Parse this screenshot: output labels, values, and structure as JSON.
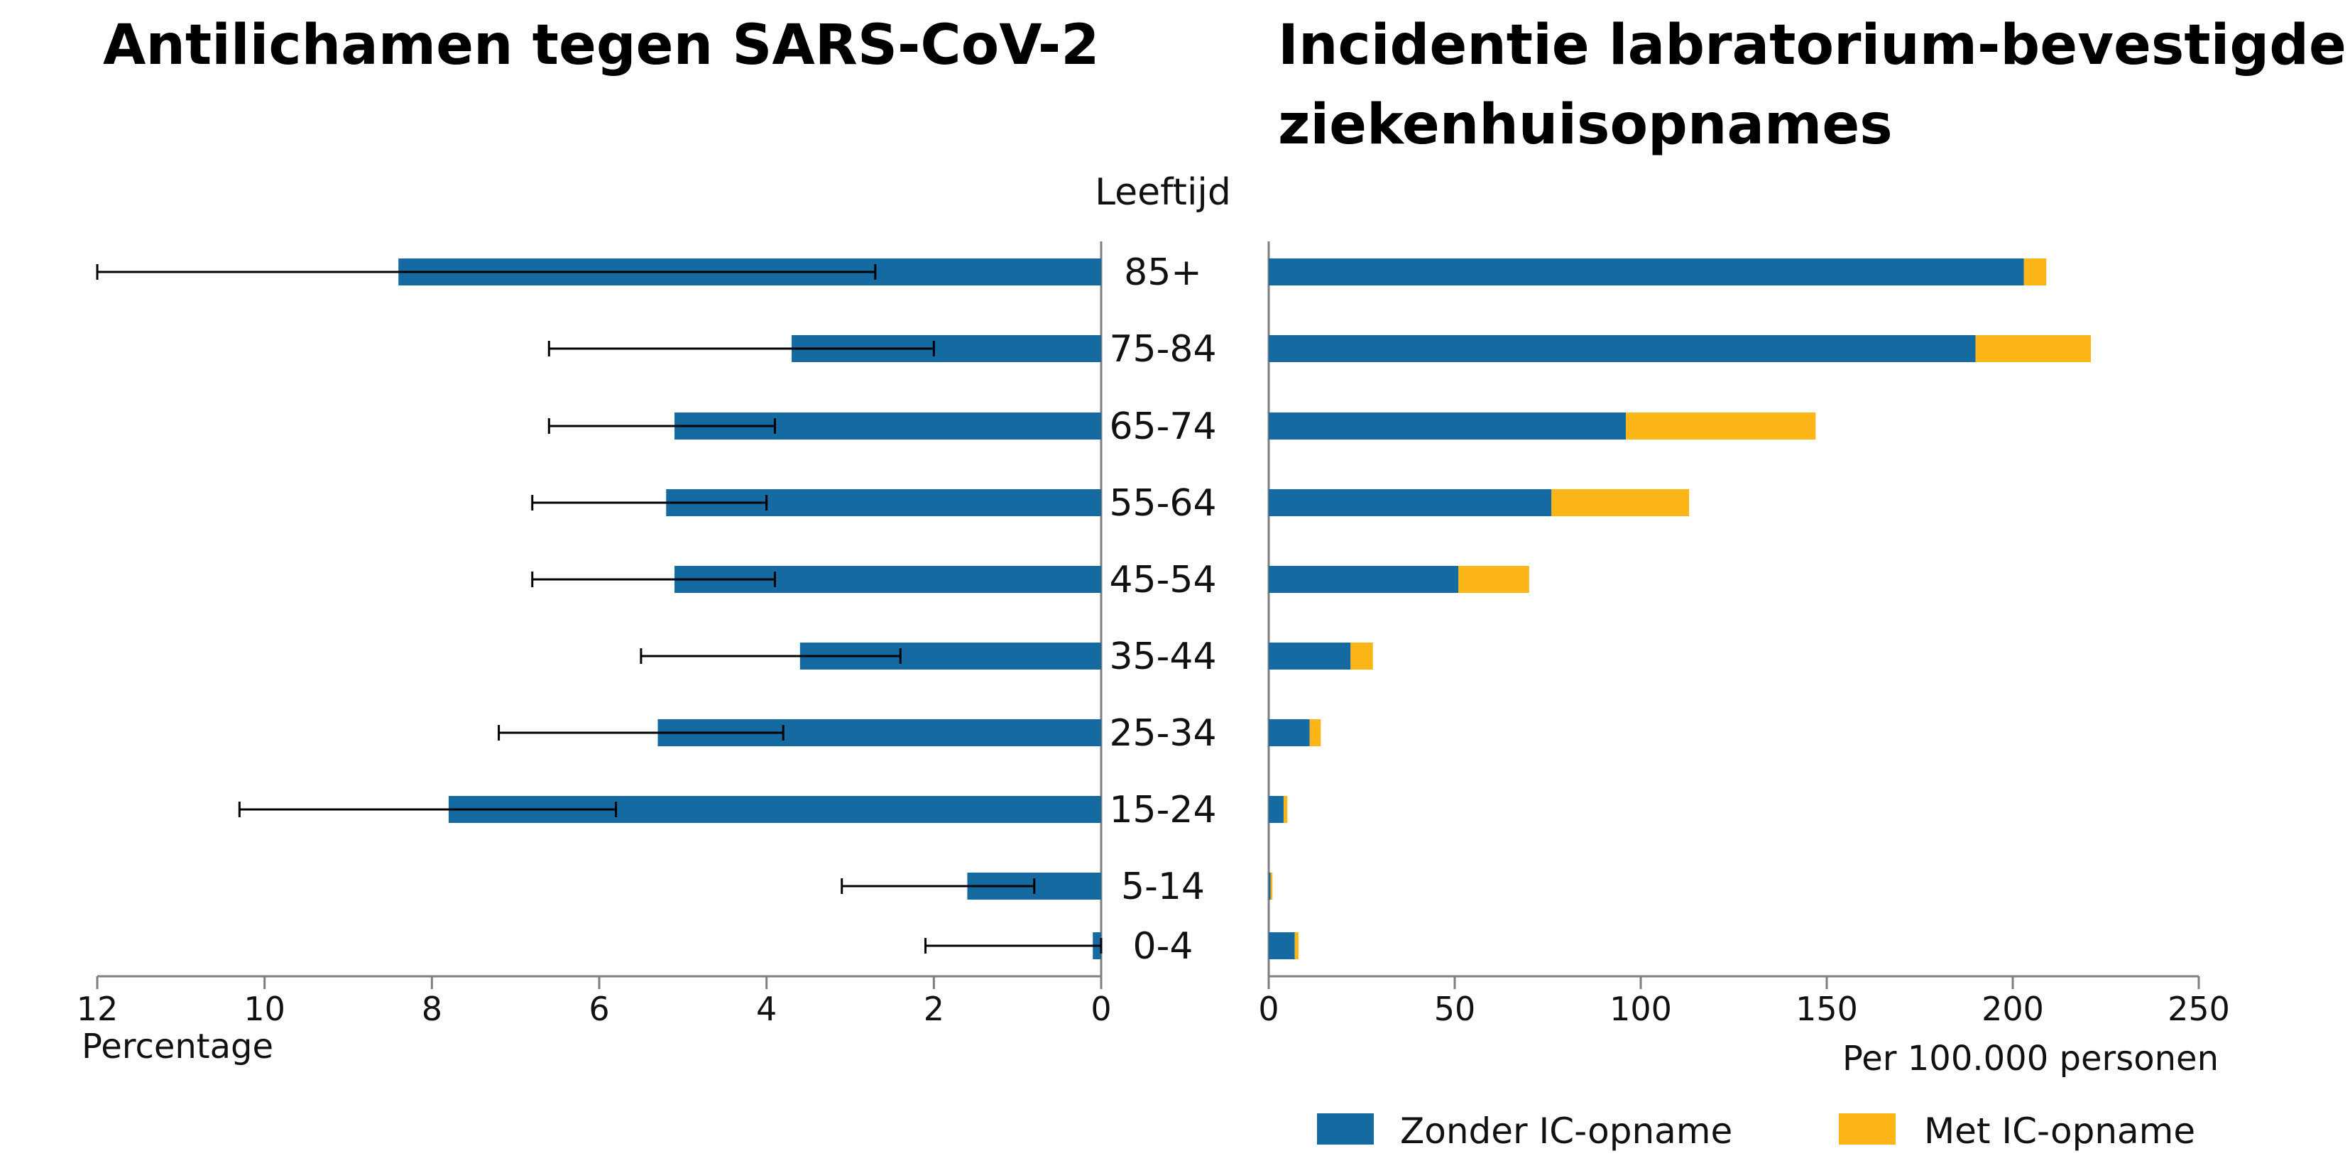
{
  "colors": {
    "zonder": "#156ba1",
    "met": "#fbb516",
    "axis": "#7f7f7f",
    "error": "#000000"
  },
  "chart_data": [
    {
      "type": "bar",
      "orientation": "horizontal",
      "direction": "right-to-left",
      "title": "Antilichamen tegen SARS-CoV-2",
      "xlabel": "Percentage",
      "ylabel": "Leeftijd",
      "xlim": [
        0,
        12
      ],
      "xticks": [
        "12",
        "10",
        "8",
        "6",
        "4",
        "2",
        "0"
      ],
      "categories": [
        "85+",
        "75-84",
        "65-74",
        "55-64",
        "45-54",
        "35-44",
        "25-34",
        "15-24",
        "5-14",
        "0-4"
      ],
      "series": [
        {
          "values": [
            8.4,
            3.7,
            5.1,
            5.2,
            5.1,
            3.6,
            5.3,
            7.8,
            1.6,
            0.1
          ],
          "error_low": [
            2.7,
            2.0,
            3.9,
            4.0,
            3.9,
            2.4,
            3.8,
            5.8,
            0.8,
            0.0
          ],
          "error_high": [
            12.0,
            6.6,
            6.6,
            6.8,
            6.8,
            5.5,
            7.2,
            10.3,
            3.1,
            2.1
          ]
        }
      ]
    },
    {
      "type": "bar",
      "orientation": "horizontal",
      "stacked": true,
      "title": "Incidentie labratorium-bevestigde ziekenhuisopnames",
      "xlabel": "Per 100.000 personen",
      "xlim": [
        0,
        250
      ],
      "xticks": [
        "0",
        "50",
        "100",
        "150",
        "200",
        "250"
      ],
      "categories": [
        "85+",
        "75-84",
        "65-74",
        "55-64",
        "45-54",
        "35-44",
        "25-34",
        "15-24",
        "5-14",
        "0-4"
      ],
      "series": [
        {
          "name": "Zonder IC-opname",
          "values": [
            203,
            190,
            96,
            76,
            51,
            22,
            11,
            4,
            0.5,
            7
          ]
        },
        {
          "name": "Met IC-opname",
          "values": [
            6,
            31,
            51,
            37,
            19,
            6,
            3,
            1,
            0.5,
            1
          ]
        }
      ]
    }
  ]
}
